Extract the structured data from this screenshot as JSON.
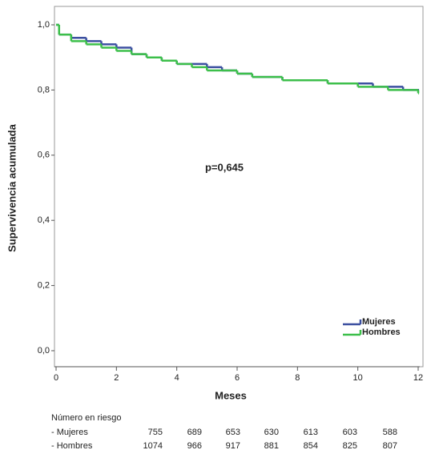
{
  "chart_data": {
    "type": "step",
    "ylabel": "Supervivencia acumulada",
    "xlabel": "Meses",
    "annotation": "p=0,645",
    "x": [
      0,
      0.1,
      0.5,
      1,
      1.5,
      2,
      2.5,
      3,
      3.5,
      4,
      4.5,
      5,
      5.5,
      6,
      6.5,
      7,
      7.5,
      8,
      8.5,
      9,
      9.5,
      10,
      10.5,
      11,
      11.5,
      12
    ],
    "series": [
      {
        "name": "Mujeres",
        "color": "#3b4fa0",
        "values": [
          1.0,
          0.97,
          0.96,
          0.95,
          0.94,
          0.93,
          0.91,
          0.9,
          0.89,
          0.88,
          0.88,
          0.87,
          0.86,
          0.85,
          0.84,
          0.84,
          0.83,
          0.83,
          0.83,
          0.82,
          0.82,
          0.82,
          0.81,
          0.81,
          0.8,
          0.8
        ]
      },
      {
        "name": "Hombres",
        "color": "#3cbf4a",
        "values": [
          1.0,
          0.97,
          0.95,
          0.94,
          0.93,
          0.92,
          0.91,
          0.9,
          0.89,
          0.88,
          0.87,
          0.86,
          0.86,
          0.85,
          0.84,
          0.84,
          0.83,
          0.83,
          0.83,
          0.82,
          0.82,
          0.81,
          0.81,
          0.8,
          0.8,
          0.79
        ]
      }
    ],
    "xlim": [
      0,
      12
    ],
    "xticks": [
      0,
      2,
      4,
      6,
      8,
      10,
      12
    ],
    "ylim": [
      0,
      1
    ],
    "yticks": [
      {
        "value": 0,
        "label": "0,0"
      },
      {
        "value": 0.2,
        "label": "0,2"
      },
      {
        "value": 0.4,
        "label": "0,4"
      },
      {
        "value": 0.6,
        "label": "0,6"
      },
      {
        "value": 0.8,
        "label": "0,8"
      },
      {
        "value": 1,
        "label": "1,0"
      }
    ],
    "legend": "lower right"
  },
  "risk_table": {
    "title": "Número en riesgo",
    "rows": [
      {
        "label": "- Mujeres",
        "values": [
          755,
          689,
          653,
          630,
          613,
          603,
          588
        ]
      },
      {
        "label": "- Hombres",
        "values": [
          1074,
          966,
          917,
          881,
          854,
          825,
          807
        ]
      }
    ]
  }
}
